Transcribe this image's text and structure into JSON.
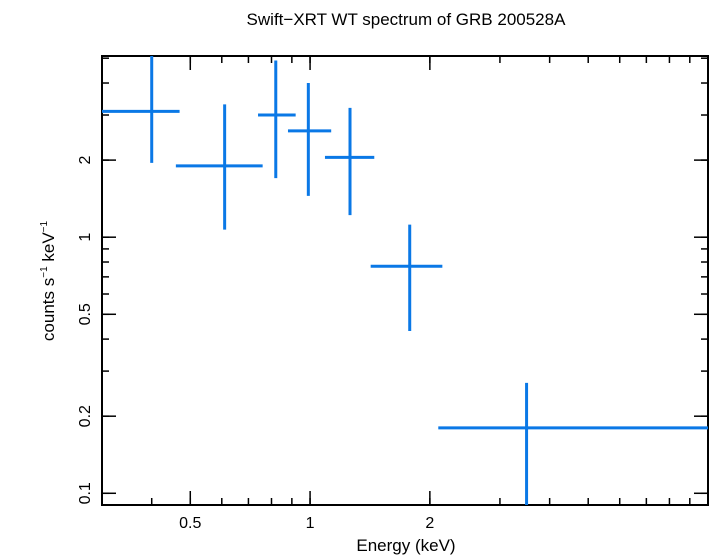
{
  "chart_data": {
    "type": "scatter",
    "title": "Swift−XRT WT spectrum of GRB 200528A",
    "xlabel": "Energy (keV)",
    "ylabel_main": "counts s",
    "ylabel_exp1": "−1",
    "ylabel_mid": " keV",
    "ylabel_exp2": "−1",
    "xscale": "log",
    "yscale": "log",
    "xlim": [
      0.3,
      10.0
    ],
    "ylim": [
      0.09,
      5.1
    ],
    "x_ticks": [
      {
        "value": 0.5,
        "label": "0.5"
      },
      {
        "value": 1,
        "label": "1"
      },
      {
        "value": 2,
        "label": "2"
      }
    ],
    "y_ticks": [
      {
        "value": 0.1,
        "label": "0.1"
      },
      {
        "value": 0.2,
        "label": "0.2"
      },
      {
        "value": 0.5,
        "label": "0.5"
      },
      {
        "value": 1,
        "label": "1"
      },
      {
        "value": 2,
        "label": "2"
      }
    ],
    "series": [
      {
        "name": "WT spectrum",
        "color": "#0a78e6",
        "points": [
          {
            "x": 0.4,
            "xlo": 0.3,
            "xhi": 0.47,
            "y": 3.1,
            "ylo": 1.95,
            "yhi": 5.1
          },
          {
            "x": 0.61,
            "xlo": 0.46,
            "xhi": 0.76,
            "y": 1.9,
            "ylo": 1.07,
            "yhi": 3.3
          },
          {
            "x": 0.82,
            "xlo": 0.74,
            "xhi": 0.92,
            "y": 3.0,
            "ylo": 1.7,
            "yhi": 4.9
          },
          {
            "x": 0.99,
            "xlo": 0.88,
            "xhi": 1.13,
            "y": 2.6,
            "ylo": 1.45,
            "yhi": 4.0
          },
          {
            "x": 1.26,
            "xlo": 1.09,
            "xhi": 1.45,
            "y": 2.05,
            "ylo": 1.22,
            "yhi": 3.2
          },
          {
            "x": 1.78,
            "xlo": 1.42,
            "xhi": 2.15,
            "y": 0.77,
            "ylo": 0.43,
            "yhi": 1.12
          },
          {
            "x": 3.5,
            "xlo": 2.1,
            "xhi": 10.0,
            "y": 0.18,
            "ylo": 0.09,
            "yhi": 0.27
          }
        ]
      }
    ]
  }
}
